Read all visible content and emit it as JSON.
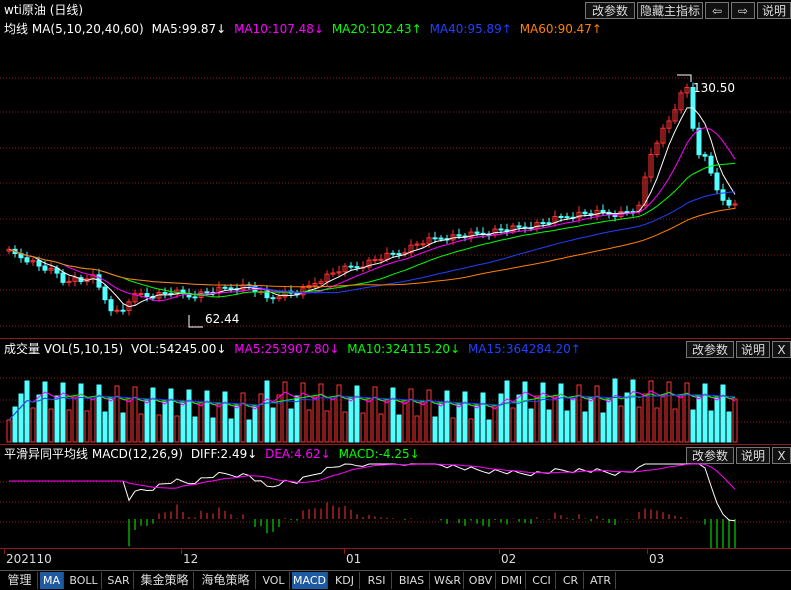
{
  "title": {
    "name": "wti原油",
    "period": "(日线)"
  },
  "top_buttons": {
    "params": "改参数",
    "hide_indicator": "隐藏主指标",
    "prev_icon": "arrow-left",
    "next_icon": "arrow-right",
    "help": "说明"
  },
  "main_pane": {
    "legend": {
      "name": "均线",
      "params": "MA(5,10,20,40,60)",
      "ma5": "MA5:99.87↓",
      "ma10": "MA10:107.48↓",
      "ma20": "MA20:102.43↑",
      "ma40": "MA40:95.89↑",
      "ma60": "MA60:90.47↑"
    },
    "high_label": "130.50",
    "low_label": "62.44"
  },
  "volume_pane": {
    "legend": {
      "name": "成交量",
      "params": "VOL(5,10,15)",
      "vol": "VOL:54245.00↓",
      "ma5": "MA5:253907.80↓",
      "ma10": "MA10:324115.20↓",
      "ma15": "MA15:364284.20↑"
    },
    "params_btn": "改参数",
    "help_btn": "说明",
    "close_btn": "X"
  },
  "macd_pane": {
    "legend": {
      "name": "平滑异同平均线",
      "params": "MACD(12,26,9)",
      "diff": "DIFF:2.49↓",
      "dea": "DEA:4.62↓",
      "macd": "MACD:-4.25↓"
    },
    "params_btn": "改参数",
    "help_btn": "说明",
    "close_btn": "X"
  },
  "x_axis": {
    "labels": [
      "202110",
      "12",
      "01",
      "02",
      "03"
    ]
  },
  "tabs": [
    "管理",
    "MA",
    "BOLL",
    "SAR",
    "集金策略",
    "海龟策略",
    "VOL",
    "MACD",
    "KDJ",
    "RSI",
    "BIAS",
    "W&R",
    "OBV",
    "DMI",
    "CCI",
    "CR",
    "ATR"
  ],
  "active_tabs": [
    "MA",
    "MACD"
  ],
  "colors": {
    "up": "#ff3232",
    "down": "#54ffff",
    "ma5": "#ffffff",
    "ma10": "#ff00ff",
    "ma20": "#00ff00",
    "ma40": "#2040ff",
    "ma60": "#ff8000",
    "grid": "#8b1a1a"
  }
}
